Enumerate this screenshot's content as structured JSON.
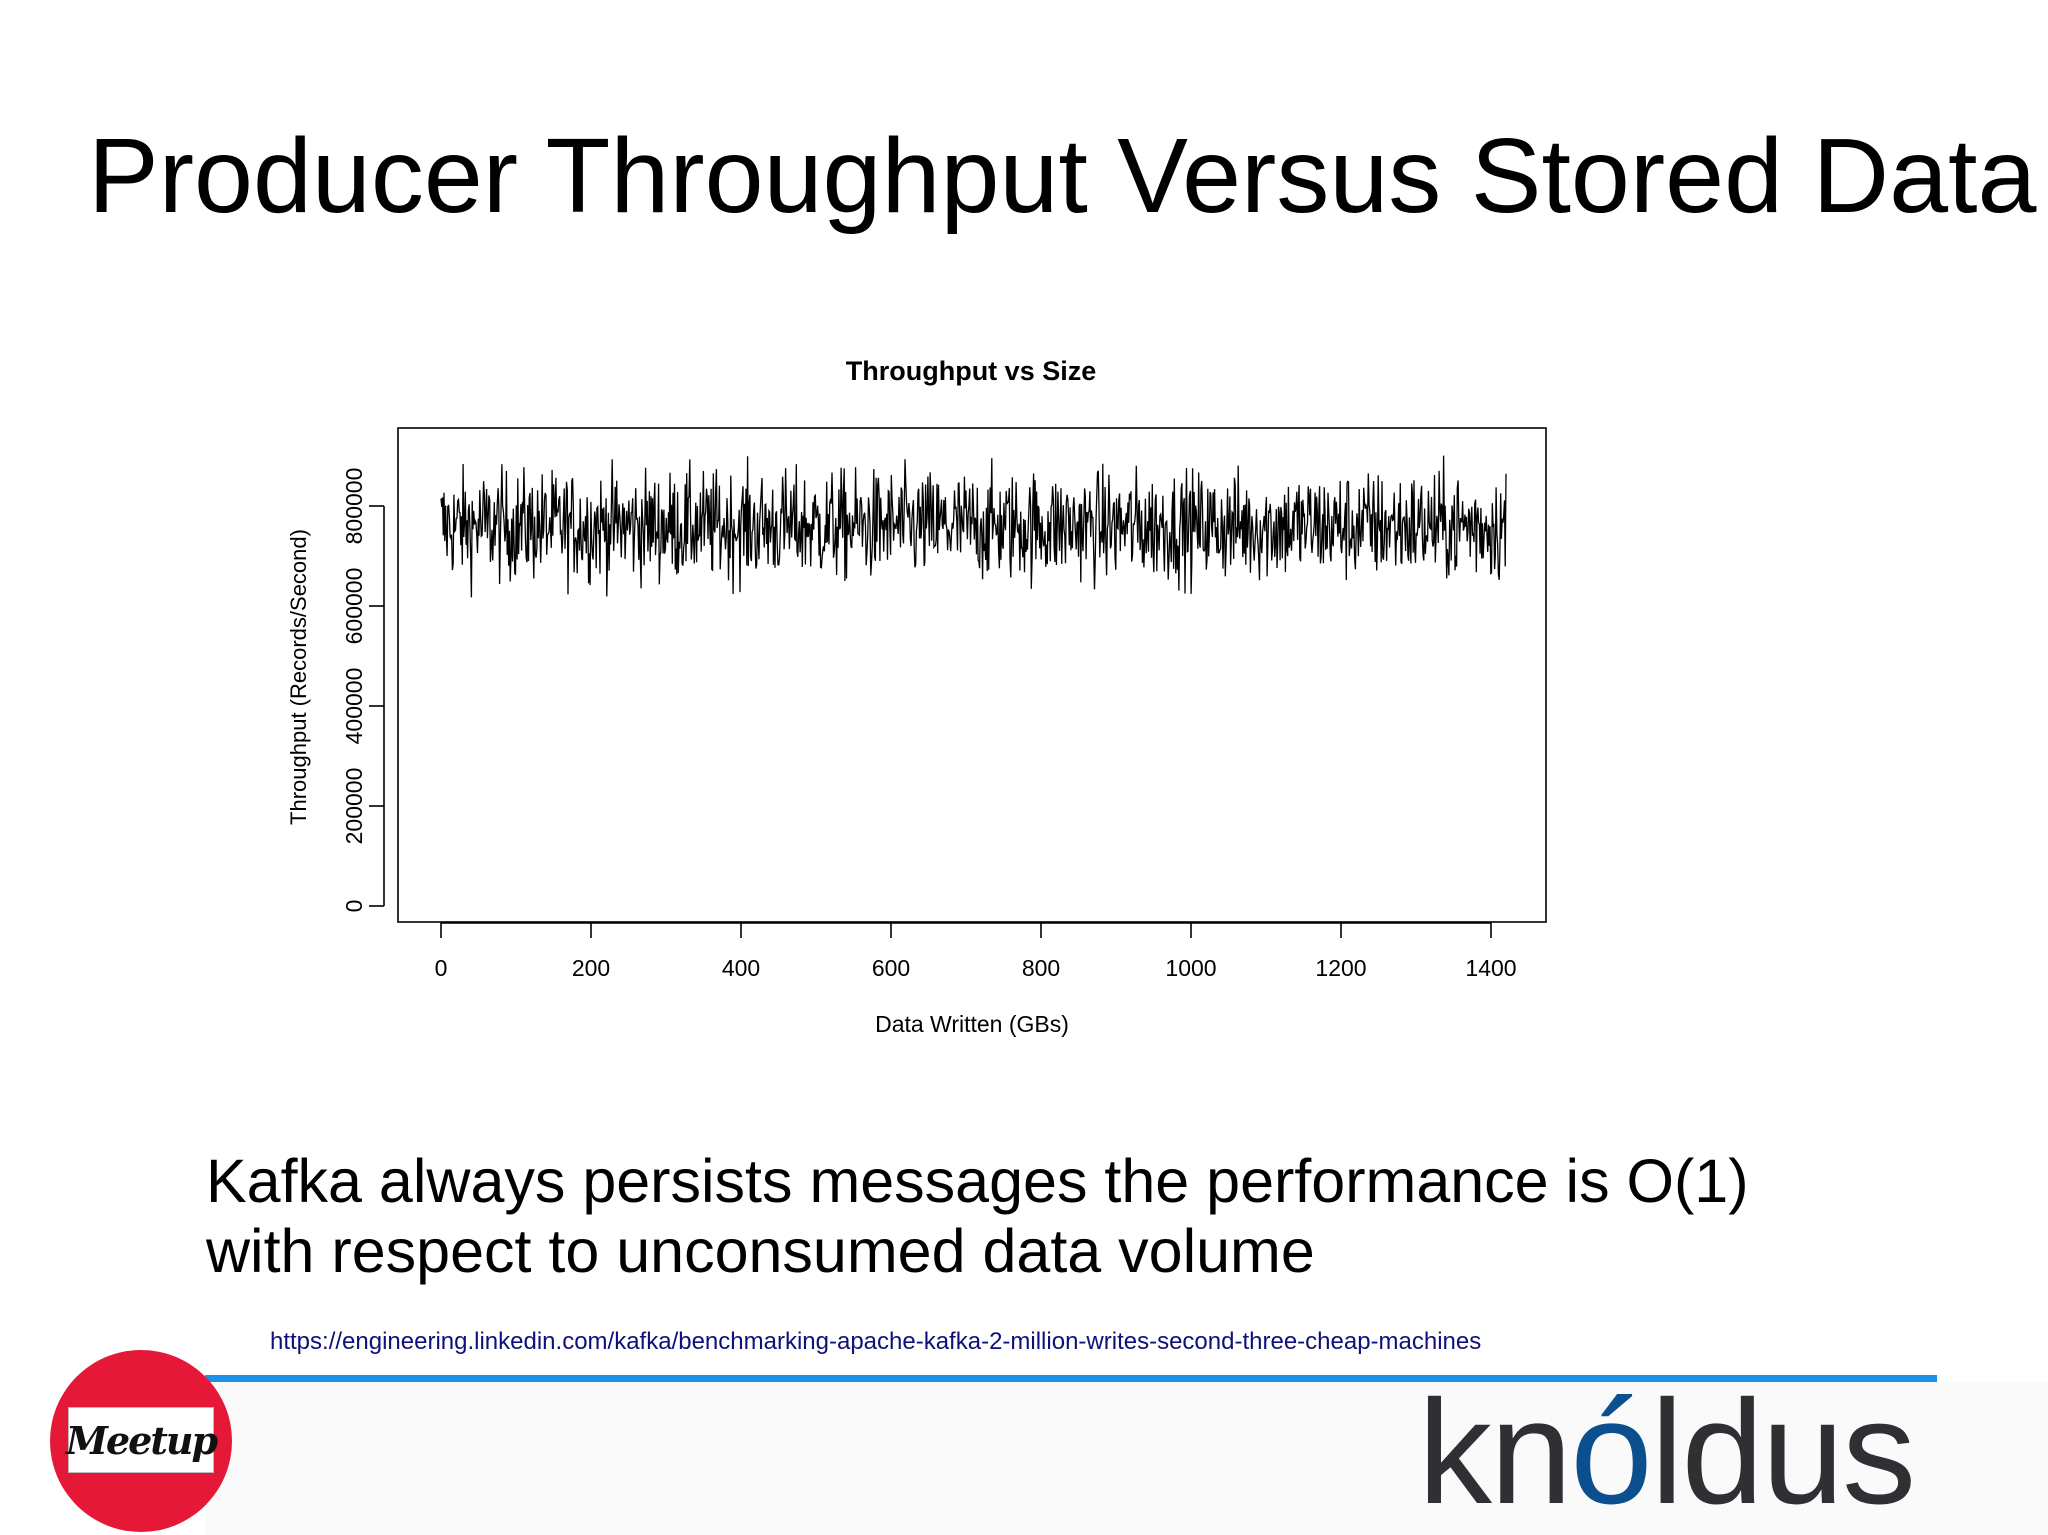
{
  "slide": {
    "title": "Producer Throughput Versus Stored Data",
    "body_lines": [
      "Kafka always persists messages the performance is O(1)",
      "with respect to unconsumed data volume"
    ],
    "source_url": "https://engineering.linkedin.com/kafka/benchmarking-apache-kafka-2-million-writes-second-three-cheap-machines",
    "divider_color": "#1e90e8",
    "meetup_color": "#e51937"
  },
  "logos": {
    "meetup_text": "Meetup",
    "knoldus_prefix": "kn",
    "knoldus_accent": "ó",
    "knoldus_suffix": "ldus"
  },
  "chart_data": {
    "type": "line",
    "title": "Throughput vs Size",
    "xlabel": "Data Written (GBs)",
    "ylabel": "Throughput (Records/Second)",
    "xlim": [
      -57,
      1478
    ],
    "ylim": [
      0,
      920000
    ],
    "x_ticks": [
      0,
      200,
      400,
      600,
      800,
      1000,
      1200,
      1400
    ],
    "y_ticks": [
      0,
      200000,
      400000,
      600000,
      800000
    ],
    "x_tick_labels": [
      "0",
      "200",
      "400",
      "600",
      "800",
      "1000",
      "1200",
      "1400"
    ],
    "y_tick_labels": [
      "0",
      "200000",
      "400000",
      "600000",
      "800000"
    ],
    "grid": false,
    "legend": "none",
    "series": [
      {
        "x_range": [
          0,
          1420
        ],
        "mean": 760000,
        "min": 570000,
        "max": 920000,
        "sd": 55000
      }
    ]
  }
}
